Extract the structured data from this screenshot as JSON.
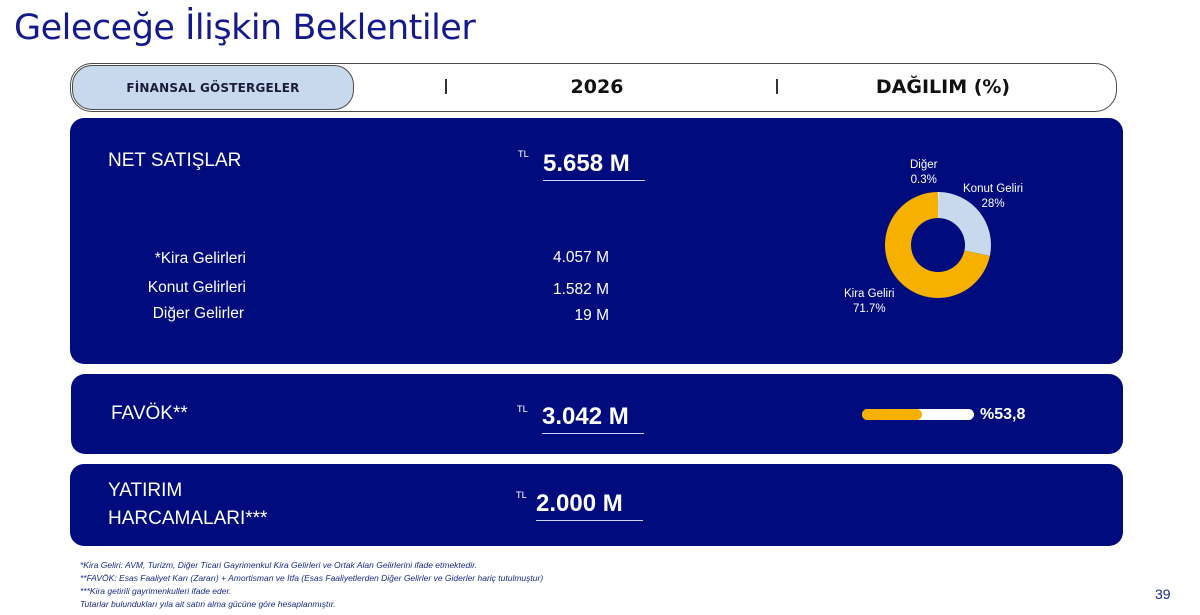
{
  "title": "Geleceğe İlişkin Beklentiler",
  "header": {
    "tab_label": "FİNANSAL GÖSTERGELER",
    "col_year": "2026",
    "col_distribution": "DAĞILIM (%)"
  },
  "net_sales": {
    "label": "NET SATIŞLAR",
    "unit": "TL",
    "value": "5.658 M",
    "items": [
      {
        "label": "*Kira Gelirleri",
        "value": "4.057 M"
      },
      {
        "label": "Konut Gelirleri",
        "value": "1.582 M"
      },
      {
        "label": "Diğer Gelirler",
        "value": "19 M"
      }
    ]
  },
  "chart_data": {
    "type": "pie",
    "categories": [
      "Kira Geliri",
      "Konut Geliri",
      "Diğer"
    ],
    "values": [
      71.7,
      28,
      0.3
    ],
    "labels": [
      "71.7%",
      "28%",
      "0.3%"
    ],
    "colors": [
      "#f5b000",
      "#c8d9ee",
      "#ffffff"
    ]
  },
  "ebitda": {
    "label": "FAVÖK**",
    "unit": "TL",
    "value": "3.042 M",
    "margin_text": "%53,8",
    "margin_fraction": 0.538,
    "bar_color": "#f5b000"
  },
  "capex": {
    "label_line1": "YATIRIM",
    "label_line2": "HARCAMALARI***",
    "unit": "TL",
    "value": "2.000 M"
  },
  "footnotes": [
    "*Kira Geliri: AVM, Turizm, Diğer Ticari Gayrimenkul Kira Gelirleri ve Ortak Alan Gelirlerini ifade etmektedir.",
    "**FAVÖK: Esas Faaliyet Karı (Zararı) + Amortisman ve İtfa (Esas Faaliyetlerden Diğer Gelirler ve Giderler hariç tutulmuştur)",
    "***Kira getirili gayrimenkulleri ifade eder.",
    "Tutarlar bulundukları yıla ait satın alma gücüne göre hesaplanmıştır."
  ],
  "page_number": "39"
}
